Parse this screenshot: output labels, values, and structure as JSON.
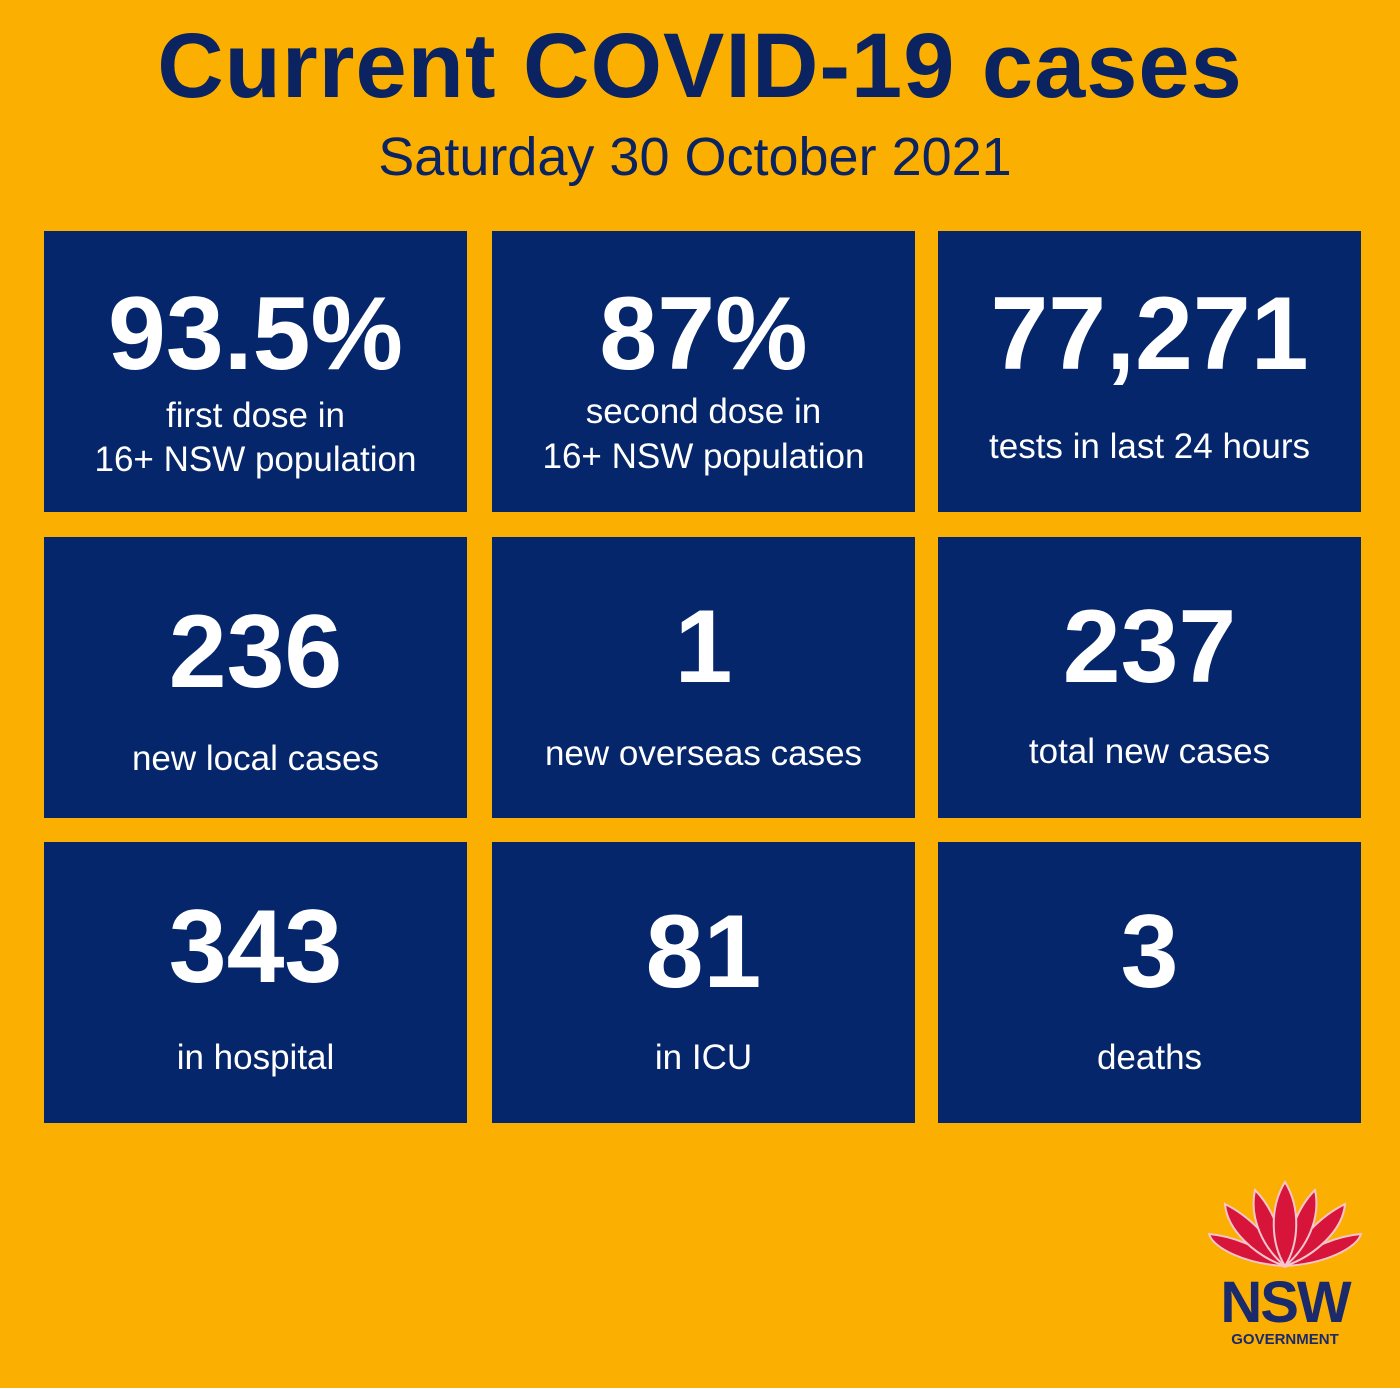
{
  "header": {
    "title": "Current COVID-19 cases",
    "date": "Saturday  30 October 2021"
  },
  "tiles": [
    {
      "value": "93.5%",
      "label_lines": [
        "first dose in",
        "16+ NSW population"
      ]
    },
    {
      "value": "87%",
      "label_lines": [
        "second dose in",
        "16+ NSW population"
      ]
    },
    {
      "value": "77,271",
      "label_lines": [
        "tests in last 24 hours"
      ]
    },
    {
      "value": "236",
      "label_lines": [
        "new local cases"
      ]
    },
    {
      "value": "1",
      "label_lines": [
        "new overseas  cases"
      ]
    },
    {
      "value": "237",
      "label_lines": [
        "total new cases"
      ]
    },
    {
      "value": "343",
      "label_lines": [
        "in hospital"
      ]
    },
    {
      "value": "81",
      "label_lines": [
        "in ICU"
      ]
    },
    {
      "value": "3",
      "label_lines": [
        "deaths"
      ]
    }
  ],
  "logo": {
    "name": "NSW",
    "subtitle": "GOVERNMENT"
  },
  "colors": {
    "background": "#FBAF00",
    "tile": "#06266B",
    "text_dark": "#0B2360",
    "waratah": "#D7153A"
  }
}
